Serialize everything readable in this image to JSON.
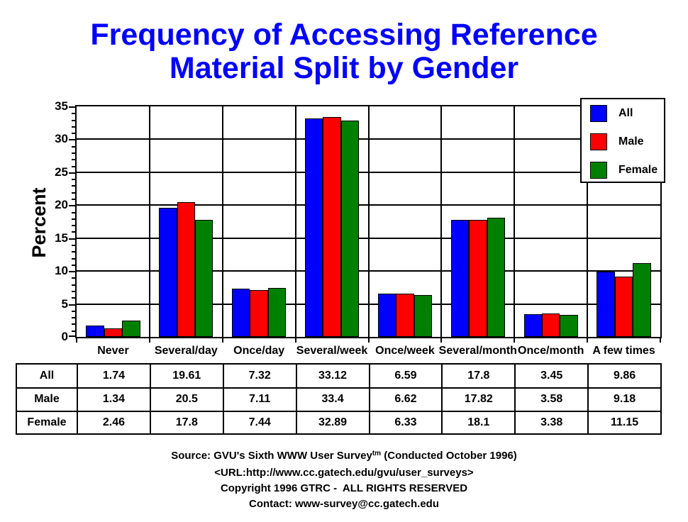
{
  "title": {
    "line1": "Frequency of Accessing Reference",
    "line2": "Material Split by Gender",
    "color": "#0000FF"
  },
  "chart_data": {
    "type": "bar",
    "title": "Frequency of Accessing Reference Material Split by Gender",
    "categories": [
      "Never",
      "Several/day",
      "Once/day",
      "Several/week",
      "Once/week",
      "Several/month",
      "Once/month",
      "A few times"
    ],
    "series": [
      {
        "name": "All",
        "color": "#0000FF",
        "values": [
          1.74,
          19.61,
          7.32,
          33.12,
          6.59,
          17.8,
          3.45,
          9.86
        ]
      },
      {
        "name": "Male",
        "color": "#FF0000",
        "values": [
          1.34,
          20.5,
          7.11,
          33.4,
          6.62,
          17.82,
          3.58,
          9.18
        ]
      },
      {
        "name": "Female",
        "color": "#008000",
        "values": [
          2.46,
          17.8,
          7.44,
          32.89,
          6.33,
          18.1,
          3.38,
          11.15
        ]
      }
    ],
    "xlabel": "",
    "ylabel": "Percent",
    "ylim": [
      0,
      35
    ],
    "yticks": [
      0,
      5,
      10,
      15,
      20,
      25,
      30,
      35
    ],
    "ytick_major_step": 5,
    "ytick_minor_step": 1,
    "grid": true,
    "legend_position": "top-right",
    "axis_color": "#000000"
  },
  "table": {
    "rows": [
      {
        "label": "All",
        "values": [
          "1.74",
          "19.61",
          "7.32",
          "33.12",
          "6.59",
          "17.8",
          "3.45",
          "9.86"
        ]
      },
      {
        "label": "Male",
        "values": [
          "1.34",
          "20.5",
          "7.11",
          "33.4",
          "6.62",
          "17.82",
          "3.58",
          "9.18"
        ]
      },
      {
        "label": "Female",
        "values": [
          "2.46",
          "17.8",
          "7.44",
          "32.89",
          "6.33",
          "18.1",
          "3.38",
          "11.15"
        ]
      }
    ]
  },
  "footer": {
    "source_prefix": "Source: GVU's Sixth WWW User Survey",
    "source_sup": "tm",
    "source_suffix": " (Conducted October 1996)",
    "url": "<URL:http://www.cc.gatech.edu/gvu/user_surveys>",
    "copyright": "Copyright 1996 GTRC -  ALL RIGHTS RESERVED",
    "contact": "Contact: www-survey@cc.gatech.edu"
  }
}
